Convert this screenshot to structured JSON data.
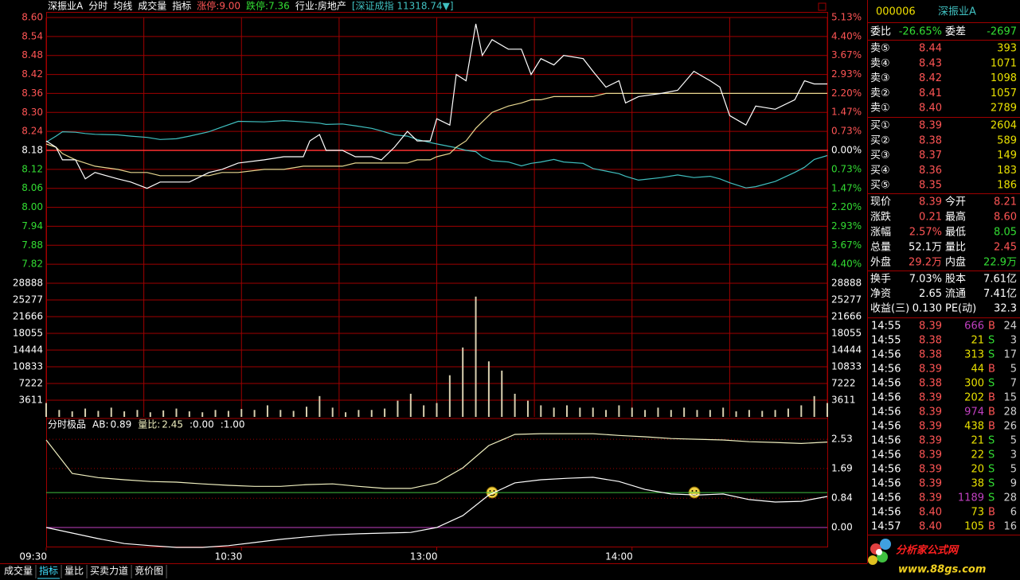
{
  "header": {
    "items": [
      {
        "text": "深振业A",
        "color": "#ffffff"
      },
      {
        "text": "分时",
        "color": "#ffffff"
      },
      {
        "text": "均线",
        "color": "#ffffff"
      },
      {
        "text": "成交量",
        "color": "#ffffff"
      },
      {
        "text": "指标",
        "color": "#ffffff"
      },
      {
        "text": "涨停:9.00",
        "color": "#ff5555"
      },
      {
        "text": "跌停:7.36",
        "color": "#33dd33"
      },
      {
        "text": "行业:房地产",
        "color": "#ffffff"
      },
      {
        "text": "[深证成指 11318.74▼]",
        "color": "#40c0c0"
      }
    ]
  },
  "chart_data": [
    {
      "type": "line",
      "grid": true,
      "grid_style": "solid",
      "xgrid": true,
      "ytick_side": "left",
      "xlim": [
        0,
        240
      ],
      "xticks": [
        0,
        30,
        60,
        90,
        120,
        150,
        180,
        210,
        240
      ],
      "ylim": [
        7.76,
        8.6
      ],
      "yticks": [
        {
          "value": 8.6,
          "label": "8.60"
        },
        8.54,
        8.48,
        8.42,
        8.36,
        {
          "value": 8.3,
          "label": "8.30"
        },
        8.24,
        8.18,
        8.12,
        8.06,
        {
          "value": 8,
          "label": "8.00"
        },
        7.94,
        7.88,
        7.82
      ],
      "y2lim": [
        -5.13,
        5.13
      ],
      "y2ticks": [
        {
          "value": 5.13,
          "label": "5.13%"
        },
        {
          "value": 4.4,
          "label": "4.40%"
        },
        {
          "value": 3.67,
          "label": "3.67%"
        },
        {
          "value": 2.93,
          "label": "2.93%"
        },
        {
          "value": 2.2,
          "label": "2.20%"
        },
        {
          "value": 1.47,
          "label": "1.47%"
        },
        {
          "value": 0.73,
          "label": "0.73%"
        },
        {
          "value": 0,
          "label": "0.00%"
        },
        {
          "value": -0.73,
          "label": "0.73%"
        },
        {
          "value": -1.47,
          "label": "1.47%"
        },
        {
          "value": -2.2,
          "label": "2.20%"
        },
        {
          "value": -2.93,
          "label": "2.93%"
        },
        {
          "value": -3.67,
          "label": "3.67%"
        },
        {
          "value": -4.4,
          "label": "4.40%"
        }
      ],
      "x": [
        0,
        3,
        5,
        9,
        12,
        15,
        22,
        26,
        31,
        35,
        40,
        44,
        50,
        54,
        59,
        67,
        73,
        79,
        81,
        84,
        86,
        91,
        95,
        100,
        103,
        107,
        111,
        114,
        118,
        120,
        124,
        126,
        129,
        132,
        134,
        137,
        142,
        146,
        149,
        152,
        156,
        159,
        165,
        168,
        172,
        176,
        178,
        182,
        189,
        194,
        199,
        204,
        207,
        210,
        215,
        218,
        224,
        230,
        233,
        236,
        240
      ],
      "series": [
        {
          "color": "#40c0c0",
          "axis": "y2",
          "values": [
            0.32,
            0.55,
            0.72,
            0.7,
            0.65,
            0.62,
            0.6,
            0.55,
            0.5,
            0.42,
            0.45,
            0.55,
            0.72,
            0.9,
            1.12,
            1.1,
            1.15,
            1.1,
            1.08,
            1.05,
            1.0,
            1.02,
            0.95,
            0.85,
            0.75,
            0.6,
            0.55,
            0.42,
            0.3,
            0.25,
            0.15,
            0.1,
            0.0,
            -0.05,
            -0.25,
            -0.4,
            -0.45,
            -0.6,
            -0.5,
            -0.45,
            -0.35,
            -0.45,
            -0.5,
            -0.7,
            -0.8,
            -0.9,
            -1.0,
            -1.15,
            -1.05,
            -0.95,
            -1.05,
            -1.0,
            -1.1,
            -1.25,
            -1.45,
            -1.4,
            -1.2,
            -0.85,
            -0.65,
            -0.35,
            -0.2
          ]
        },
        {
          "color": "#e8d890",
          "values": [
            8.2,
            8.19,
            8.17,
            8.15,
            8.14,
            8.13,
            8.12,
            8.11,
            8.11,
            8.1,
            8.1,
            8.1,
            8.1,
            8.11,
            8.11,
            8.12,
            8.12,
            8.13,
            8.13,
            8.13,
            8.13,
            8.13,
            8.14,
            8.14,
            8.14,
            8.14,
            8.14,
            8.15,
            8.15,
            8.16,
            8.17,
            8.19,
            8.21,
            8.25,
            8.27,
            8.3,
            8.32,
            8.33,
            8.34,
            8.34,
            8.35,
            8.35,
            8.35,
            8.35,
            8.36,
            8.36,
            8.36,
            8.36,
            8.36,
            8.36,
            8.36,
            8.36,
            8.36,
            8.36,
            8.36,
            8.36,
            8.36,
            8.36,
            8.36,
            8.36,
            8.36
          ]
        },
        {
          "color": "#ffffff",
          "values": [
            8.21,
            8.19,
            8.15,
            8.15,
            8.09,
            8.11,
            8.09,
            8.08,
            8.06,
            8.08,
            8.08,
            8.08,
            8.11,
            8.12,
            8.14,
            8.15,
            8.16,
            8.16,
            8.21,
            8.23,
            8.18,
            8.18,
            8.16,
            8.16,
            8.15,
            8.19,
            8.24,
            8.21,
            8.21,
            8.28,
            8.26,
            8.42,
            8.4,
            8.58,
            8.48,
            8.53,
            8.5,
            8.5,
            8.42,
            8.47,
            8.45,
            8.48,
            8.47,
            8.43,
            8.38,
            8.4,
            8.33,
            8.35,
            8.36,
            8.37,
            8.43,
            8.4,
            8.38,
            8.29,
            8.26,
            8.32,
            8.31,
            8.34,
            8.4,
            8.39,
            8.39
          ]
        }
      ]
    },
    {
      "type": "bar",
      "grid": true,
      "grid_style": "solid",
      "xgrid": true,
      "ytick_side": "both",
      "color": "#d8d0b0",
      "xlim": [
        0,
        240
      ],
      "xticks": [
        0,
        30,
        60,
        90,
        120,
        150,
        180,
        210,
        240
      ],
      "ylim": [
        0,
        28888
      ],
      "yticks": [
        3611,
        7222,
        10833,
        14444,
        18055,
        21666,
        25277,
        28888
      ],
      "x": [
        0,
        4,
        8,
        12,
        16,
        20,
        24,
        28,
        32,
        36,
        40,
        44,
        48,
        52,
        56,
        60,
        64,
        68,
        72,
        76,
        80,
        84,
        88,
        92,
        96,
        100,
        104,
        108,
        112,
        116,
        120,
        124,
        128,
        132,
        136,
        140,
        144,
        148,
        152,
        156,
        160,
        164,
        168,
        172,
        176,
        180,
        184,
        188,
        192,
        196,
        200,
        204,
        208,
        212,
        216,
        220,
        224,
        228,
        232,
        236,
        240
      ],
      "values": [
        3000,
        1500,
        1200,
        1800,
        1300,
        2000,
        1200,
        1500,
        1000,
        1400,
        1800,
        1200,
        1000,
        1500,
        1300,
        1700,
        1500,
        2500,
        1500,
        1300,
        2200,
        4500,
        2000,
        1000,
        1500,
        1500,
        1800,
        3500,
        5000,
        2500,
        3000,
        9000,
        15000,
        26000,
        12000,
        10000,
        5000,
        3500,
        2500,
        2000,
        2500,
        2000,
        2000,
        1500,
        2500,
        2000,
        1500,
        2000,
        1500,
        2000,
        1500,
        1500,
        2000,
        1200,
        1500,
        1300,
        1500,
        1800,
        2500,
        4500,
        3000
      ]
    },
    {
      "type": "line",
      "title": "分时极品",
      "grid": true,
      "grid_style": "dotted",
      "xgrid": false,
      "ytick_side": "right",
      "xlim": [
        0,
        240
      ],
      "xticks": [
        {
          "value": 0,
          "label": "09:30"
        },
        {
          "value": 60,
          "label": "10:30"
        },
        {
          "value": 120,
          "label": "13:00"
        },
        {
          "value": 180,
          "label": "14:00"
        }
      ],
      "ylim": [
        -0.57,
        3.08
      ],
      "yticks": [
        {
          "value": 0,
          "label": "0.00"
        },
        0.84,
        1.69,
        2.53
      ],
      "levels": [
        {
          "value": 0,
          "label": ":0.00",
          "color": "#c040c0"
        },
        {
          "value": 1,
          "label": ":1.00",
          "color": "#40c040"
        }
      ],
      "x": [
        0,
        8,
        16,
        24,
        32,
        40,
        48,
        56,
        64,
        72,
        80,
        88,
        96,
        104,
        112,
        120,
        128,
        136,
        144,
        152,
        160,
        168,
        176,
        184,
        192,
        200,
        208,
        216,
        224,
        232,
        240
      ],
      "series": [
        {
          "name": "AB:",
          "color": "#ffffff",
          "values": [
            0.0,
            -0.16,
            -0.32,
            -0.46,
            -0.52,
            -0.57,
            -0.57,
            -0.52,
            -0.43,
            -0.34,
            -0.27,
            -0.21,
            -0.18,
            -0.16,
            -0.14,
            0.0,
            0.34,
            0.93,
            1.28,
            1.37,
            1.41,
            1.44,
            1.32,
            1.09,
            0.96,
            0.93,
            0.96,
            0.8,
            0.73,
            0.75,
            0.89
          ]
        },
        {
          "name": "量比:",
          "color": "#f0f0c0",
          "values": [
            2.51,
            1.55,
            1.43,
            1.37,
            1.32,
            1.3,
            1.25,
            1.21,
            1.18,
            1.18,
            1.23,
            1.25,
            1.18,
            1.12,
            1.12,
            1.28,
            1.71,
            2.35,
            2.67,
            2.69,
            2.69,
            2.69,
            2.64,
            2.6,
            2.55,
            2.53,
            2.51,
            2.46,
            2.44,
            2.41,
            2.45
          ]
        }
      ]
    }
  ],
  "quote": {
    "code": "000006",
    "name": "深振业A",
    "ratio": {
      "label": "委比",
      "value": "-26.65%",
      "label2": "委差",
      "value2": "-2697",
      "color": "#33dd33"
    },
    "sell": [
      {
        "label": "卖⑤",
        "price": "8.44",
        "volume": "393"
      },
      {
        "label": "卖④",
        "price": "8.43",
        "volume": "1071"
      },
      {
        "label": "卖③",
        "price": "8.42",
        "volume": "1098"
      },
      {
        "label": "卖②",
        "price": "8.41",
        "volume": "1057"
      },
      {
        "label": "卖①",
        "price": "8.40",
        "volume": "2789"
      }
    ],
    "buy": [
      {
        "label": "买①",
        "price": "8.39",
        "volume": "2604"
      },
      {
        "label": "买②",
        "price": "8.38",
        "volume": "589"
      },
      {
        "label": "买③",
        "price": "8.37",
        "volume": "149"
      },
      {
        "label": "买④",
        "price": "8.36",
        "volume": "183"
      },
      {
        "label": "买⑤",
        "price": "8.35",
        "volume": "186"
      }
    ],
    "stats": [
      {
        "label": "现价",
        "value": "8.39",
        "color": "#ff5555",
        "label2": "今开",
        "value2": "8.21",
        "color2": "#ff5555"
      },
      {
        "label": "涨跌",
        "value": "0.21",
        "color": "#ff5555",
        "label2": "最高",
        "value2": "8.60",
        "color2": "#ff5555"
      },
      {
        "label": "涨幅",
        "value": "2.57%",
        "color": "#ff5555",
        "label2": "最低",
        "value2": "8.05",
        "color2": "#33dd33"
      },
      {
        "label": "总量",
        "value": "52.1万",
        "color": "#ffffff",
        "label2": "量比",
        "value2": "2.45",
        "color2": "#ff5555"
      },
      {
        "label": "外盘",
        "value": "29.2万",
        "color": "#ff5555",
        "label2": "内盘",
        "value2": "22.9万",
        "color2": "#33dd33"
      }
    ],
    "capital": [
      {
        "label": "换手",
        "value": "7.03%",
        "color": "#ffffff",
        "label2": "股本",
        "value2": "7.61亿",
        "color2": "#ffffff"
      },
      {
        "label": "净资",
        "value": "2.65",
        "color": "#ffffff",
        "label2": "流通",
        "value2": "7.41亿",
        "color2": "#ffffff"
      },
      {
        "label": "收益(三)",
        "value": "0.130",
        "color": "#ffffff",
        "label2": "PE(动)",
        "value2": "32.3",
        "color2": "#ffffff"
      }
    ]
  },
  "trades": [
    {
      "time": "14:55",
      "price": "8.39",
      "volume": "666",
      "side": "B",
      "count": "24",
      "volume_color": "#c040c0"
    },
    {
      "time": "14:55",
      "price": "8.38",
      "volume": "21",
      "side": "S",
      "count": "3",
      "volume_color": "#e8e000"
    },
    {
      "time": "14:56",
      "price": "8.38",
      "volume": "313",
      "side": "S",
      "count": "17",
      "volume_color": "#e8e000"
    },
    {
      "time": "14:56",
      "price": "8.39",
      "volume": "44",
      "side": "B",
      "count": "5",
      "volume_color": "#e8e000"
    },
    {
      "time": "14:56",
      "price": "8.38",
      "volume": "300",
      "side": "S",
      "count": "7",
      "volume_color": "#e8e000"
    },
    {
      "time": "14:56",
      "price": "8.39",
      "volume": "202",
      "side": "B",
      "count": "15",
      "volume_color": "#e8e000"
    },
    {
      "time": "14:56",
      "price": "8.39",
      "volume": "974",
      "side": "B",
      "count": "28",
      "volume_color": "#c040c0"
    },
    {
      "time": "14:56",
      "price": "8.39",
      "volume": "438",
      "side": "B",
      "count": "26",
      "volume_color": "#e8e000"
    },
    {
      "time": "14:56",
      "price": "8.39",
      "volume": "21",
      "side": "S",
      "count": "5",
      "volume_color": "#e8e000"
    },
    {
      "time": "14:56",
      "price": "8.39",
      "volume": "22",
      "side": "S",
      "count": "3",
      "volume_color": "#e8e000"
    },
    {
      "time": "14:56",
      "price": "8.39",
      "volume": "20",
      "side": "S",
      "count": "5",
      "volume_color": "#e8e000"
    },
    {
      "time": "14:56",
      "price": "8.39",
      "volume": "38",
      "side": "S",
      "count": "9",
      "volume_color": "#e8e000"
    },
    {
      "time": "14:56",
      "price": "8.39",
      "volume": "1189",
      "side": "S",
      "count": "28",
      "volume_color": "#c040c0"
    },
    {
      "time": "14:56",
      "price": "8.40",
      "volume": "73",
      "side": "B",
      "count": "6",
      "volume_color": "#e8e000"
    },
    {
      "time": "14:57",
      "price": "8.40",
      "volume": "105",
      "side": "B",
      "count": "16",
      "volume_color": "#e8e000"
    }
  ],
  "tabs": {
    "items": [
      "成交量",
      "指标",
      "量比",
      "买卖力道",
      "竞价图"
    ],
    "active": 1
  },
  "logo": {
    "name": "分析家公式网",
    "url": "www.88gs.com"
  }
}
